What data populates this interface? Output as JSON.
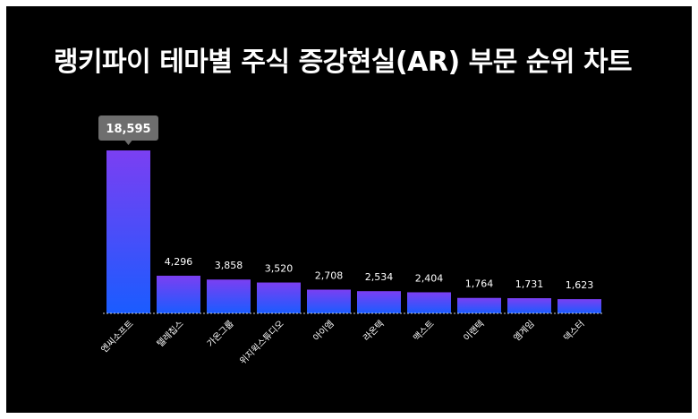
{
  "chart_data": {
    "type": "bar",
    "title": "랭키파이 테마별 주식 증강현실(AR) 부문 순위 차트",
    "categories": [
      "엔씨소프트",
      "텔레칩스",
      "가온그룹",
      "위지윅스튜디오",
      "아이엠",
      "라온텍",
      "맥스트",
      "이랜텍",
      "엠게임",
      "덱스터"
    ],
    "values": [
      18595,
      4296,
      3858,
      3520,
      2708,
      2534,
      2404,
      1764,
      1731,
      1623
    ],
    "value_labels": [
      "18,595",
      "4,296",
      "3,858",
      "3,520",
      "2,708",
      "2,534",
      "2,404",
      "1,764",
      "1,731",
      "1,623"
    ],
    "highlight_index": 0,
    "xlabel": "",
    "ylabel": "",
    "ylim": [
      0,
      18595
    ],
    "grid": false,
    "legend": "none"
  },
  "colors": {
    "background": "#000000",
    "bar_top": "#7b3ff2",
    "bar_bottom": "#1a5cff",
    "highlight_label_bg": "#6e6e6e",
    "text": "#ffffff",
    "baseline": "#cccccc"
  }
}
